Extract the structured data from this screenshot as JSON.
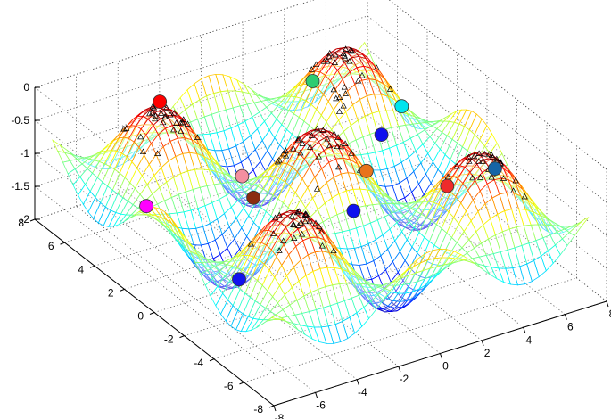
{
  "chart_data": {
    "type": "surface",
    "grid": true,
    "colormap": "jet",
    "zlim": [
      -2,
      0
    ],
    "x": {
      "lim": [
        -8,
        8
      ],
      "ticks": [
        "-8",
        "-6",
        "-4",
        "-2",
        "0",
        "2",
        "4",
        "6",
        "8"
      ]
    },
    "y": {
      "lim": [
        -8,
        8
      ],
      "ticks": [
        "-8",
        "-6",
        "-4",
        "-2",
        "0",
        "2",
        "4",
        "6",
        "8"
      ]
    },
    "z": {
      "lim": [
        -2,
        0
      ],
      "ticks": [
        "-2",
        "-1.5",
        "-1",
        "-0.5",
        "0"
      ]
    },
    "surface": {
      "peak_spacing": 4.5,
      "peak_z": 0,
      "trough_z": -2,
      "mesh": "wireframe"
    },
    "markers": [
      {
        "color": "#2ecc71",
        "x": 4.5,
        "y": 6.8
      },
      {
        "color": "#00e5ee",
        "x": 7.2,
        "y": 4.6
      },
      {
        "color": "#ff0000",
        "x": -4.5,
        "y": 4.5
      },
      {
        "color": "#8b2b10",
        "x": 0.0,
        "y": 4.5
      },
      {
        "color": "#1010ee",
        "x": 4.5,
        "y": 2.2
      },
      {
        "color": "#1565a6",
        "x": 6.8,
        "y": -2.2
      },
      {
        "color": "#ff00ff",
        "x": -6.8,
        "y": 2.2
      },
      {
        "color": "#f48fa0",
        "x": -2.2,
        "y": 2.2
      },
      {
        "color": "#e8731c",
        "x": 2.2,
        "y": 0.0
      },
      {
        "color": "#ee2b2b",
        "x": 4.5,
        "y": -2.2
      },
      {
        "color": "#1212ee",
        "x": -4.5,
        "y": -0.8
      },
      {
        "color": "#1010ee",
        "x": 0.0,
        "y": -2.2
      }
    ]
  }
}
